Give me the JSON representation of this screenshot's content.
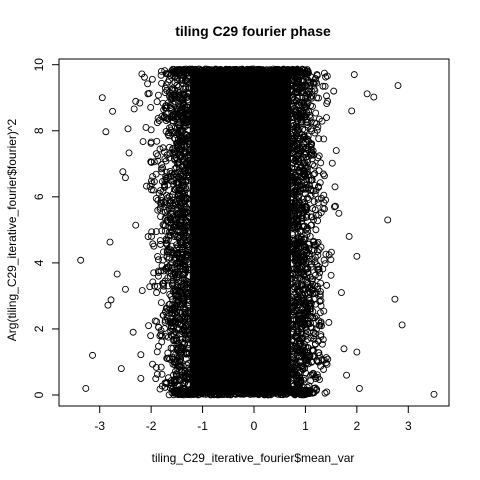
{
  "chart_data": {
    "type": "scatter",
    "title": "tiling C29 fourier phase",
    "xlabel": "tiling_C29_iterative_fourier$mean_var",
    "ylabel": "Arg(tiling_C29_iterative_fourier$fourier)^2",
    "xlim": [
      -3.5,
      3.5
    ],
    "ylim": [
      0,
      9.87
    ],
    "x_ticks": [
      "-3",
      "-2",
      "-1",
      "0",
      "1",
      "2",
      "3"
    ],
    "y_ticks": [
      "0",
      "2",
      "4",
      "6",
      "8",
      "10"
    ],
    "marker": "open-circle",
    "color": "#000000",
    "grid": false,
    "dense_core": {
      "x_range": [
        -1.25,
        0.72
      ],
      "y_range": [
        0,
        9.87
      ]
    },
    "outlier_points": [
      {
        "x": -3.37,
        "y": 4.08
      },
      {
        "x": -3.27,
        "y": 0.2
      },
      {
        "x": -3.14,
        "y": 1.2
      },
      {
        "x": -2.95,
        "y": 9.0
      },
      {
        "x": -2.88,
        "y": 7.97
      },
      {
        "x": -2.84,
        "y": 2.72
      },
      {
        "x": -2.78,
        "y": 2.88
      },
      {
        "x": -2.8,
        "y": 4.63
      },
      {
        "x": -2.75,
        "y": 8.59
      },
      {
        "x": -2.66,
        "y": 3.66
      },
      {
        "x": -2.55,
        "y": 6.76
      },
      {
        "x": -2.5,
        "y": 6.58
      },
      {
        "x": -2.45,
        "y": 8.06
      },
      {
        "x": -2.33,
        "y": 8.66
      },
      {
        "x": -2.3,
        "y": 8.89
      },
      {
        "x": -2.22,
        "y": 8.84
      },
      {
        "x": -2.18,
        "y": 9.72
      },
      {
        "x": -2.13,
        "y": 9.62
      },
      {
        "x": -2.43,
        "y": 7.33
      },
      {
        "x": -2.1,
        "y": 8.1
      },
      {
        "x": -2.0,
        "y": 7.05
      },
      {
        "x": -2.3,
        "y": 5.14
      },
      {
        "x": -2.5,
        "y": 3.2
      },
      {
        "x": -2.2,
        "y": 1.22
      },
      {
        "x": -2.35,
        "y": 1.9
      },
      {
        "x": -2.58,
        "y": 0.8
      },
      {
        "x": -2.2,
        "y": 0.5
      },
      {
        "x": -2.05,
        "y": 2.1
      },
      {
        "x": -1.95,
        "y": 3.7
      },
      {
        "x": -1.9,
        "y": 5.95
      },
      {
        "x": -1.8,
        "y": 9.8
      },
      {
        "x": -1.75,
        "y": 8.4
      },
      {
        "x": -1.7,
        "y": 6.5
      },
      {
        "x": -1.65,
        "y": 4.4
      },
      {
        "x": -1.6,
        "y": 2.6
      },
      {
        "x": -1.55,
        "y": 1.0
      },
      {
        "x": 1.55,
        "y": 9.2
      },
      {
        "x": 1.6,
        "y": 7.4
      },
      {
        "x": 1.65,
        "y": 5.5
      },
      {
        "x": 1.7,
        "y": 3.1
      },
      {
        "x": 1.75,
        "y": 1.4
      },
      {
        "x": 1.8,
        "y": 0.6
      },
      {
        "x": 1.85,
        "y": 4.8
      },
      {
        "x": 1.9,
        "y": 8.6
      },
      {
        "x": 1.95,
        "y": 9.7
      },
      {
        "x": 2.0,
        "y": 1.3
      },
      {
        "x": 2.05,
        "y": 0.2
      },
      {
        "x": 2.0,
        "y": 4.2
      },
      {
        "x": 2.2,
        "y": 9.12
      },
      {
        "x": 2.33,
        "y": 9.02
      },
      {
        "x": 2.6,
        "y": 5.3
      },
      {
        "x": 2.74,
        "y": 2.9
      },
      {
        "x": 2.8,
        "y": 9.37
      },
      {
        "x": 2.88,
        "y": 2.12
      },
      {
        "x": 3.5,
        "y": 0.02
      }
    ]
  }
}
